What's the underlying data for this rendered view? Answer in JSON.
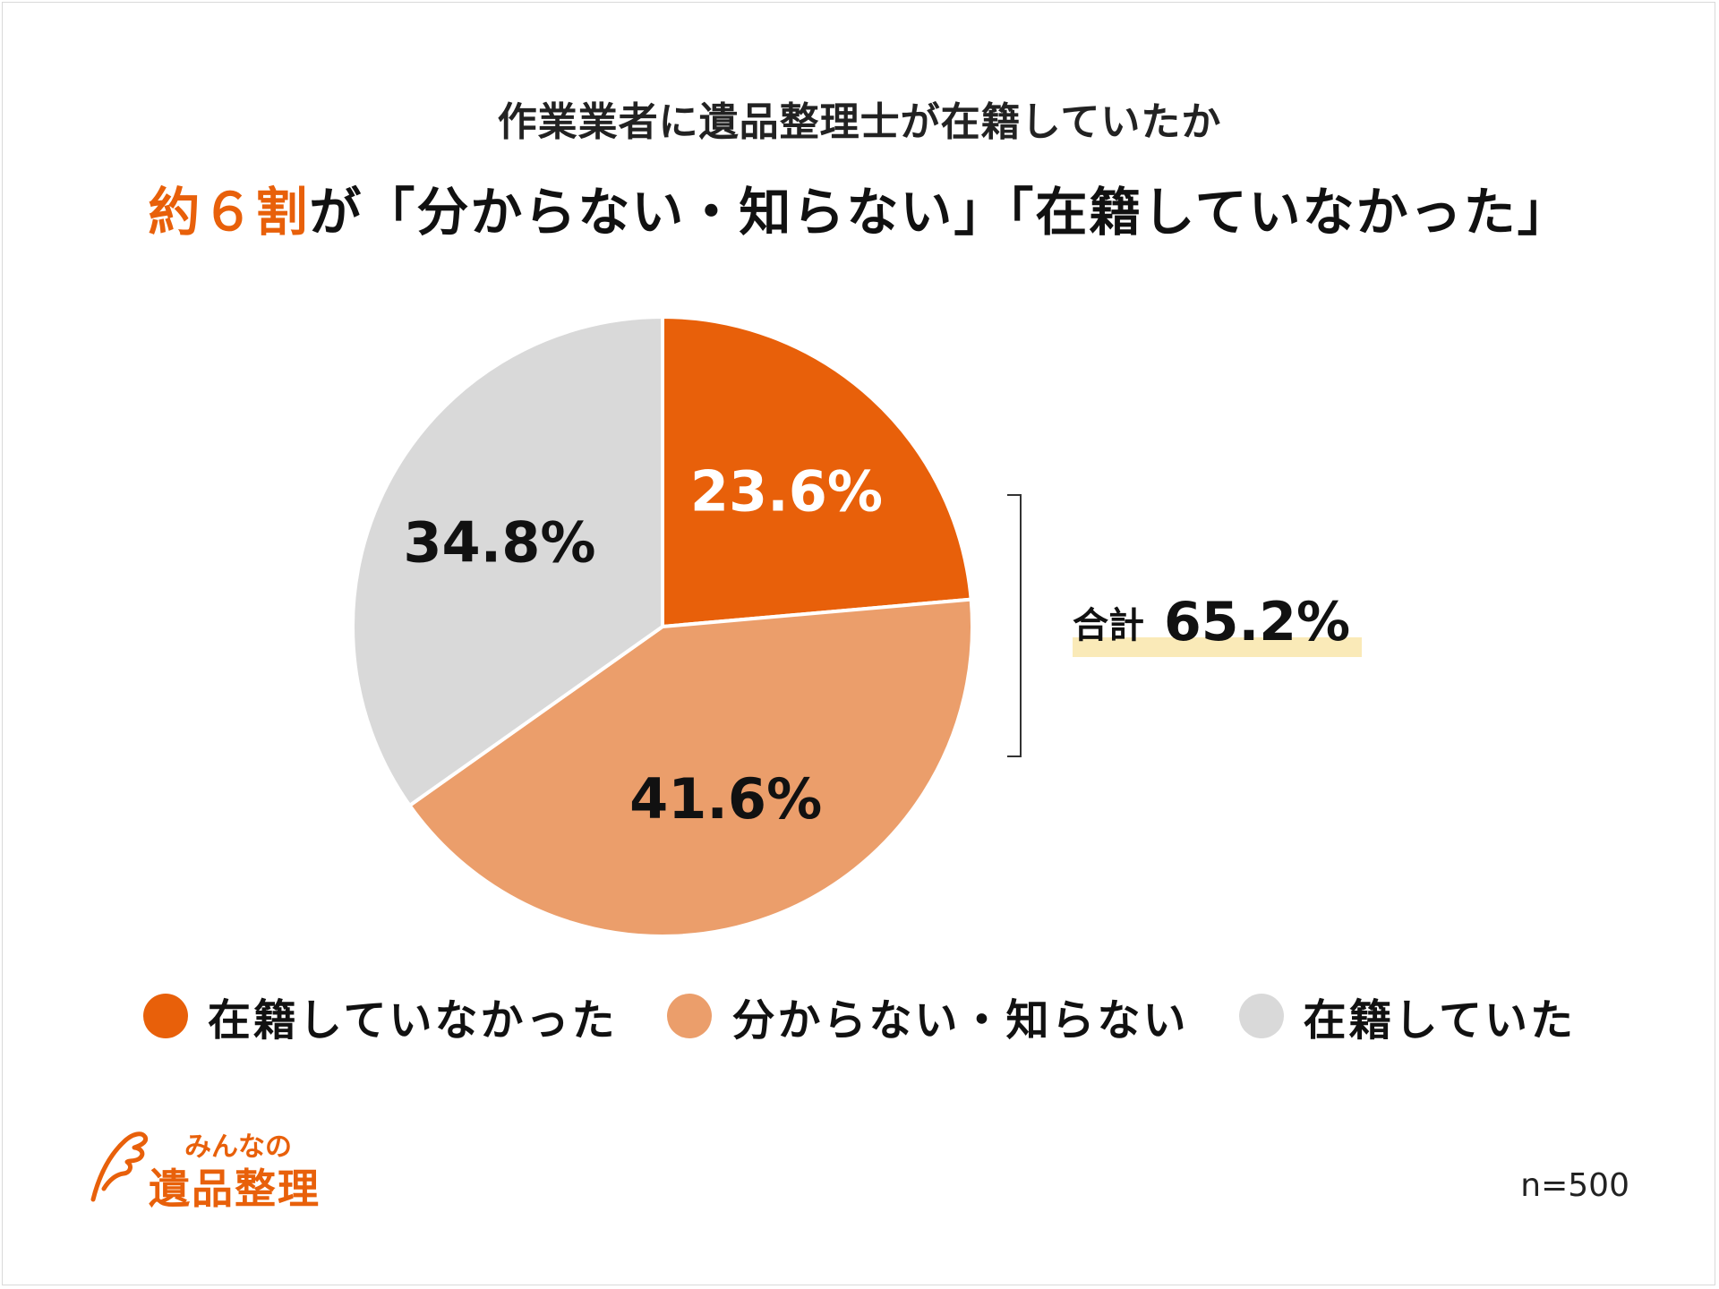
{
  "title": "作業業者に遺品整理士が在籍していたか",
  "headline": {
    "accent": "約６割",
    "rest": "が「分からない・知らない」「在籍していなかった」"
  },
  "chart_data": {
    "type": "pie",
    "slices": [
      {
        "label": "在籍していなかった",
        "value": 23.6,
        "display": "23.6%",
        "color": "#e8600a",
        "text_color": "#ffffff"
      },
      {
        "label": "分からない・知らない",
        "value": 41.6,
        "display": "41.6%",
        "color": "#eb9e6b",
        "text_color": "#111111"
      },
      {
        "label": "在籍していた",
        "value": 34.8,
        "display": "34.8%",
        "color": "#d9d9d9",
        "text_color": "#111111"
      }
    ],
    "start_angle_deg": 0,
    "direction": "clockwise",
    "legend_position": "bottom",
    "annotation": {
      "label": "合計",
      "value": "65.2%",
      "covers": [
        "在籍していなかった",
        "分からない・知らない"
      ]
    }
  },
  "logo": {
    "small": "みんなの",
    "big": "遺品整理"
  },
  "sample_size": "n=500",
  "colors": {
    "accent": "#e8600a",
    "highlight": "#faeab8"
  }
}
